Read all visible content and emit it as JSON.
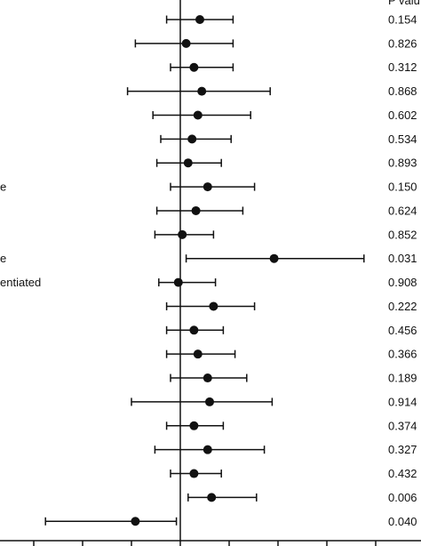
{
  "chart_data": {
    "type": "forest",
    "header": "P valu",
    "reference_x": 0,
    "xlim": [
      -1.0,
      1.48
    ],
    "x_ticks": [
      -1.0,
      -0.75,
      -0.5,
      -0.25,
      0,
      0.25,
      0.5,
      0.75,
      1.0,
      1.25
    ],
    "rows": [
      {
        "label": "",
        "estimate": 0.1,
        "lower": -0.07,
        "upper": 0.27,
        "p": "0.154"
      },
      {
        "label": "",
        "estimate": 0.03,
        "lower": -0.23,
        "upper": 0.27,
        "p": "0.826"
      },
      {
        "label": "",
        "estimate": 0.07,
        "lower": -0.05,
        "upper": 0.27,
        "p": "0.312"
      },
      {
        "label": "",
        "estimate": 0.11,
        "lower": -0.27,
        "upper": 0.46,
        "p": "0.868"
      },
      {
        "label": "",
        "estimate": 0.09,
        "lower": -0.14,
        "upper": 0.36,
        "p": "0.602"
      },
      {
        "label": "",
        "estimate": 0.06,
        "lower": -0.1,
        "upper": 0.26,
        "p": "0.534"
      },
      {
        "label": "",
        "estimate": 0.04,
        "lower": -0.12,
        "upper": 0.21,
        "p": "0.893"
      },
      {
        "label": "e",
        "estimate": 0.14,
        "lower": -0.05,
        "upper": 0.38,
        "p": "0.150"
      },
      {
        "label": "",
        "estimate": 0.08,
        "lower": -0.12,
        "upper": 0.32,
        "p": "0.624"
      },
      {
        "label": "",
        "estimate": 0.01,
        "lower": -0.13,
        "upper": 0.17,
        "p": "0.852"
      },
      {
        "label": "e",
        "estimate": 0.48,
        "lower": 0.03,
        "upper": 0.94,
        "p": "0.031"
      },
      {
        "label": "entiated",
        "estimate": -0.01,
        "lower": -0.11,
        "upper": 0.18,
        "p": "0.908"
      },
      {
        "label": "",
        "estimate": 0.17,
        "lower": -0.07,
        "upper": 0.38,
        "p": "0.222"
      },
      {
        "label": "",
        "estimate": 0.07,
        "lower": -0.07,
        "upper": 0.22,
        "p": "0.456"
      },
      {
        "label": "",
        "estimate": 0.09,
        "lower": -0.07,
        "upper": 0.28,
        "p": "0.366"
      },
      {
        "label": "",
        "estimate": 0.14,
        "lower": -0.05,
        "upper": 0.34,
        "p": "0.189"
      },
      {
        "label": "",
        "estimate": 0.15,
        "lower": -0.25,
        "upper": 0.47,
        "p": "0.914"
      },
      {
        "label": "",
        "estimate": 0.07,
        "lower": -0.07,
        "upper": 0.22,
        "p": "0.374"
      },
      {
        "label": "",
        "estimate": 0.14,
        "lower": -0.13,
        "upper": 0.43,
        "p": "0.327"
      },
      {
        "label": "",
        "estimate": 0.07,
        "lower": -0.05,
        "upper": 0.21,
        "p": "0.432"
      },
      {
        "label": "",
        "estimate": 0.16,
        "lower": 0.04,
        "upper": 0.39,
        "p": "0.006"
      },
      {
        "label": "",
        "estimate": -0.23,
        "lower": -0.69,
        "upper": -0.02,
        "p": "0.040"
      }
    ]
  }
}
